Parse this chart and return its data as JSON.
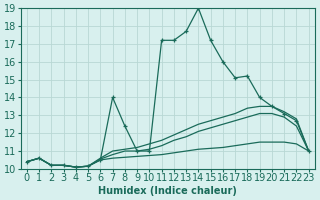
{
  "xlabel": "Humidex (Indice chaleur)",
  "bg_color": "#d8f0ee",
  "grid_color": "#b8d8d4",
  "line_color": "#1a6b5a",
  "xlim": [
    -0.5,
    23.5
  ],
  "ylim": [
    10,
    19
  ],
  "xticks": [
    0,
    1,
    2,
    3,
    4,
    5,
    6,
    7,
    8,
    9,
    10,
    11,
    12,
    13,
    14,
    15,
    16,
    17,
    18,
    19,
    20,
    21,
    22,
    23
  ],
  "yticks": [
    10,
    11,
    12,
    13,
    14,
    15,
    16,
    17,
    18,
    19
  ],
  "series": [
    {
      "x": [
        0,
        1,
        2,
        3,
        4,
        5,
        6,
        7,
        8,
        9,
        10,
        11,
        12,
        13,
        14,
        15,
        16,
        17,
        18,
        19,
        20,
        21,
        22,
        23
      ],
      "y": [
        10.4,
        10.6,
        10.2,
        10.2,
        10.1,
        10.15,
        10.5,
        14.0,
        12.4,
        11.0,
        11.0,
        17.2,
        17.2,
        17.7,
        19.0,
        17.2,
        16.0,
        15.1,
        15.2,
        14.0,
        13.5,
        13.1,
        12.7,
        11.0
      ],
      "marker": "+"
    },
    {
      "x": [
        0,
        1,
        2,
        3,
        4,
        5,
        6,
        7,
        8,
        9,
        10,
        11,
        12,
        13,
        14,
        15,
        16,
        17,
        18,
        19,
        20,
        21,
        22,
        23
      ],
      "y": [
        10.4,
        10.6,
        10.2,
        10.2,
        10.1,
        10.15,
        10.6,
        11.0,
        11.1,
        11.2,
        11.4,
        11.6,
        11.9,
        12.2,
        12.5,
        12.7,
        12.9,
        13.1,
        13.4,
        13.5,
        13.5,
        13.2,
        12.8,
        11.0
      ],
      "marker": null
    },
    {
      "x": [
        0,
        1,
        2,
        3,
        4,
        5,
        6,
        7,
        8,
        9,
        10,
        11,
        12,
        13,
        14,
        15,
        16,
        17,
        18,
        19,
        20,
        21,
        22,
        23
      ],
      "y": [
        10.4,
        10.6,
        10.2,
        10.2,
        10.1,
        10.15,
        10.55,
        10.8,
        11.0,
        11.0,
        11.1,
        11.3,
        11.6,
        11.8,
        12.1,
        12.3,
        12.5,
        12.7,
        12.9,
        13.1,
        13.1,
        12.9,
        12.4,
        11.0
      ],
      "marker": null
    },
    {
      "x": [
        0,
        1,
        2,
        3,
        4,
        5,
        6,
        7,
        8,
        9,
        10,
        11,
        12,
        13,
        14,
        15,
        16,
        17,
        18,
        19,
        20,
        21,
        22,
        23
      ],
      "y": [
        10.4,
        10.6,
        10.2,
        10.2,
        10.1,
        10.15,
        10.5,
        10.6,
        10.65,
        10.7,
        10.75,
        10.8,
        10.9,
        11.0,
        11.1,
        11.15,
        11.2,
        11.3,
        11.4,
        11.5,
        11.5,
        11.5,
        11.4,
        11.0
      ],
      "marker": null
    }
  ],
  "font_size": 7
}
